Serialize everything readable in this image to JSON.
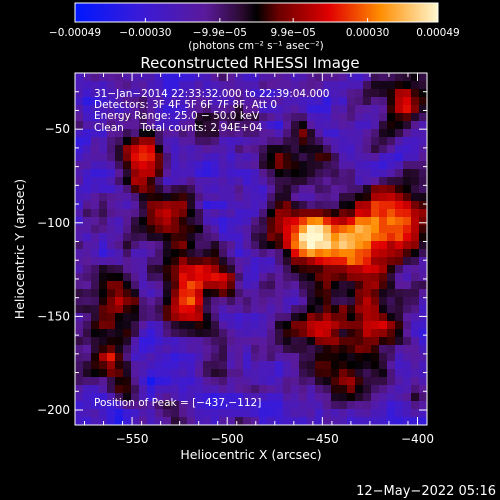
{
  "chart_data": {
    "type": "heatmap",
    "title": "Reconstructed RHESSI Image",
    "xlabel": "Heliocentric X (arcsec)",
    "ylabel": "Heliocentric Y (arcsec)",
    "xlim": [
      -580,
      -395
    ],
    "ylim": [
      -208,
      -20
    ],
    "x_ticks": [
      -550,
      -500,
      -450,
      -400
    ],
    "y_ticks": [
      -200,
      -150,
      -100,
      -50
    ],
    "x_tick_labels": [
      "−550",
      "−500",
      "−450",
      "−400"
    ],
    "y_tick_labels": [
      "−200",
      "−150",
      "−100",
      "−50"
    ],
    "colorbar": {
      "range": [
        -0.00049,
        0.00049
      ],
      "tick_values": [
        -0.00049,
        -0.0003,
        -9.9e-05,
        9.9e-05,
        0.0003,
        0.00049
      ],
      "tick_labels": [
        "−0.00049",
        "−0.00030",
        "−9.9e−05",
        "9.9e−05",
        "0.00030",
        "0.00049"
      ],
      "unit_label": "(photons cm⁻² s⁻¹ asec⁻²)"
    },
    "info_lines": [
      "31−Jan−2014 22:33:32.000 to 22:39:04.000",
      "Detectors: 3F 4F 5F 6F 7F 8F, Att 0",
      "Energy Range: 25.0 − 50.0 keV",
      "Clean     Total counts: 2.94E+04"
    ],
    "peak_label": "Position of Peak = [−437,−112]",
    "peak": [
      -437,
      -112
    ],
    "bright_sources": [
      {
        "x": -437,
        "y": -112,
        "intensity": 1.0,
        "sx": 18,
        "sy": 12
      },
      {
        "x": -412,
        "y": -95,
        "intensity": 0.75,
        "sx": 12,
        "sy": 14
      },
      {
        "x": -463,
        "y": -105,
        "intensity": 0.8,
        "sx": 12,
        "sy": 10
      },
      {
        "x": -405,
        "y": -35,
        "intensity": 0.85,
        "sx": 9,
        "sy": 12
      },
      {
        "x": -545,
        "y": -65,
        "intensity": 0.75,
        "sx": 9,
        "sy": 14
      },
      {
        "x": -530,
        "y": -100,
        "intensity": 0.7,
        "sx": 10,
        "sy": 12
      },
      {
        "x": -522,
        "y": -140,
        "intensity": 0.85,
        "sx": 8,
        "sy": 14
      },
      {
        "x": -505,
        "y": -128,
        "intensity": 0.6,
        "sx": 9,
        "sy": 10
      },
      {
        "x": -560,
        "y": -145,
        "intensity": 0.6,
        "sx": 10,
        "sy": 12
      },
      {
        "x": -565,
        "y": -175,
        "intensity": 0.55,
        "sx": 10,
        "sy": 10
      },
      {
        "x": -450,
        "y": -160,
        "intensity": 0.6,
        "sx": 14,
        "sy": 10
      },
      {
        "x": -425,
        "y": -150,
        "intensity": 0.6,
        "sx": 9,
        "sy": 12
      },
      {
        "x": -470,
        "y": -65,
        "intensity": 0.55,
        "sx": 12,
        "sy": 9
      },
      {
        "x": -435,
        "y": -185,
        "intensity": 0.45,
        "sx": 10,
        "sy": 9
      }
    ]
  },
  "footer": {
    "timestamp": "12−May−2022 05:16"
  }
}
